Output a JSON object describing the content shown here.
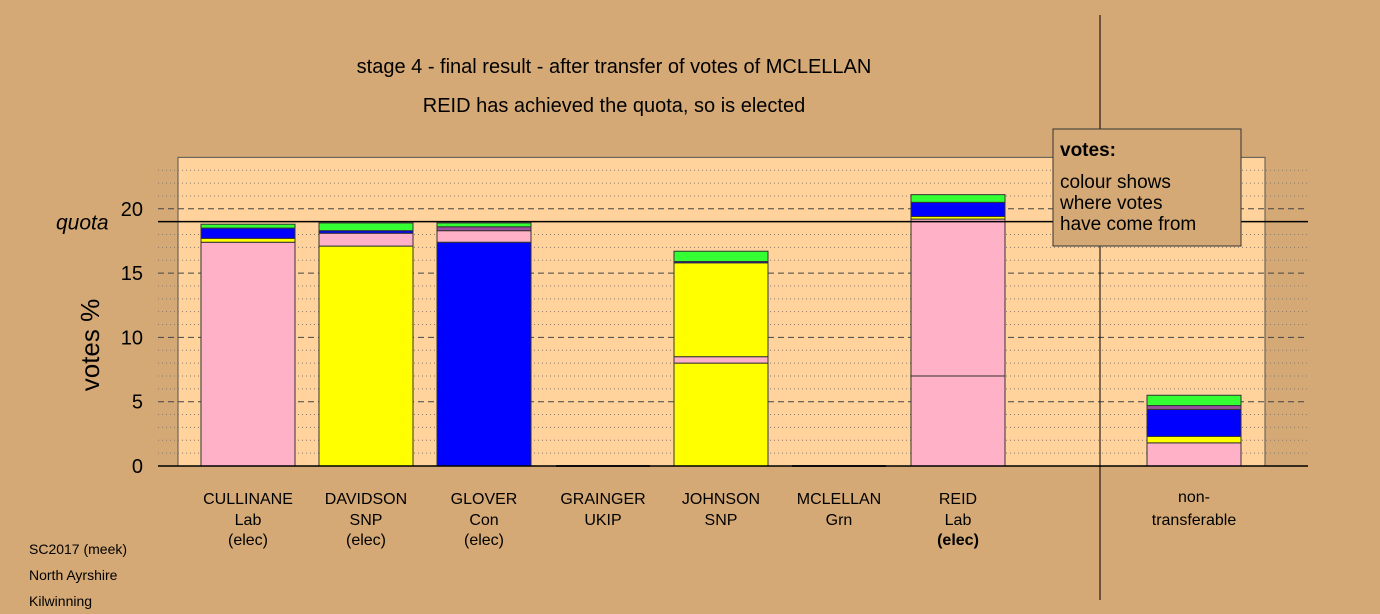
{
  "chart_data": {
    "type": "bar",
    "stacked": true,
    "title": "stage 4 - final result - after transfer of votes of MCLELLAN",
    "subtitle": "REID has achieved the quota, so is elected",
    "ylabel": "votes %",
    "ylim": [
      0,
      25
    ],
    "yticks": [
      0,
      5,
      10,
      15,
      20
    ],
    "quota_label": "quota",
    "quota": 19.0,
    "legend": {
      "title": "votes:",
      "lines": [
        "colour shows",
        "where votes",
        "have come from"
      ]
    },
    "colors": {
      "pink": "#ffb1c8",
      "yellow": "#ffff00",
      "blue": "#0000ff",
      "green": "#33ff33",
      "purple": "#9c4ea0",
      "grey": "#a9a9a9",
      "background_panel": "#ffd39b",
      "page": "#d4a976"
    },
    "categories": [
      {
        "name": "CULLINANE",
        "party": "Lab",
        "status": "(elec)",
        "status_bold": false,
        "segments": [
          [
            "pink",
            17.4
          ],
          [
            "yellow",
            0.3
          ],
          [
            "blue",
            0.8
          ],
          [
            "green",
            0.3
          ]
        ]
      },
      {
        "name": "DAVIDSON",
        "party": "SNP",
        "status": "(elec)",
        "status_bold": false,
        "segments": [
          [
            "yellow",
            17.1
          ],
          [
            "pink",
            1.0
          ],
          [
            "blue",
            0.2
          ],
          [
            "green",
            0.6
          ]
        ]
      },
      {
        "name": "GLOVER",
        "party": "Con",
        "status": "(elec)",
        "status_bold": false,
        "segments": [
          [
            "blue",
            17.4
          ],
          [
            "pink",
            0.9
          ],
          [
            "purple",
            0.3
          ],
          [
            "green",
            0.3
          ]
        ]
      },
      {
        "name": "GRAINGER",
        "party": "UKIP",
        "status": "",
        "status_bold": false,
        "segments": []
      },
      {
        "name": "JOHNSON",
        "party": "SNP",
        "status": "",
        "status_bold": false,
        "segments": [
          [
            "yellow",
            8.0
          ],
          [
            "pink",
            0.5
          ],
          [
            "yellow",
            7.3
          ],
          [
            "blue",
            0.1
          ],
          [
            "green",
            0.8
          ]
        ]
      },
      {
        "name": "MCLELLAN",
        "party": "Grn",
        "status": "",
        "status_bold": false,
        "segments": []
      },
      {
        "name": "REID",
        "party": "Lab",
        "status": "(elec)",
        "status_bold": true,
        "segments": [
          [
            "pink",
            7.0
          ],
          [
            "pink",
            12.2
          ],
          [
            "yellow",
            0.2
          ],
          [
            "blue",
            1.1
          ],
          [
            "green",
            0.6
          ]
        ]
      }
    ],
    "nontransferable": {
      "label_line1": "non-",
      "label_line2": "transferable",
      "segments": [
        [
          "pink",
          1.8
        ],
        [
          "yellow",
          0.5
        ],
        [
          "blue",
          2.1
        ],
        [
          "purple",
          0.3
        ],
        [
          "green",
          0.8
        ]
      ]
    }
  },
  "footer": {
    "line1": "SC2017 (meek)",
    "line2": "North Ayrshire",
    "line3": "Kilwinning"
  }
}
